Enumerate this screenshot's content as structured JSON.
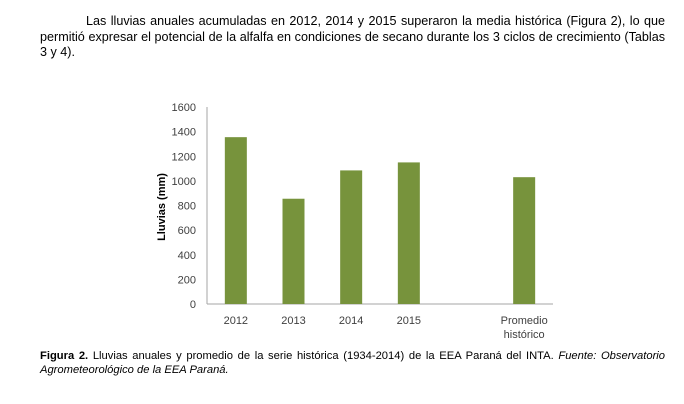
{
  "paragraph": "Las lluvias anuales acumuladas en 2012, 2014 y 2015 superaron la media histórica (Figura 2), lo que permitió expresar el potencial de la alfalfa en condiciones de secano durante los 3 ciclos de crecimiento (Tablas 3 y 4).",
  "caption": {
    "label": "Figura 2.",
    "text": " Lluvias anuales y promedio de la serie histórica (1934-2014) de la EEA Paraná del INTA. ",
    "source": "Fuente: Observatorio Agrometeorológico de la EEA Paraná."
  },
  "chart_data": {
    "type": "bar",
    "title": "",
    "xlabel": "",
    "ylabel": "Lluvias (mm)",
    "ylim": [
      0,
      1600
    ],
    "yticks": [
      "0",
      "200",
      "400",
      "600",
      "800",
      "1000",
      "1200",
      "1400",
      "1600"
    ],
    "categories": [
      "2012",
      "2013",
      "2014",
      "2015",
      "Promedio histórico"
    ],
    "category_lines": [
      [
        "2012"
      ],
      [
        "2013"
      ],
      [
        "2014"
      ],
      [
        "2015"
      ],
      [
        "Promedio",
        "histórico"
      ]
    ],
    "values": [
      1355,
      855,
      1085,
      1150,
      1030
    ],
    "bar_color": "#77933c",
    "grid": false
  }
}
